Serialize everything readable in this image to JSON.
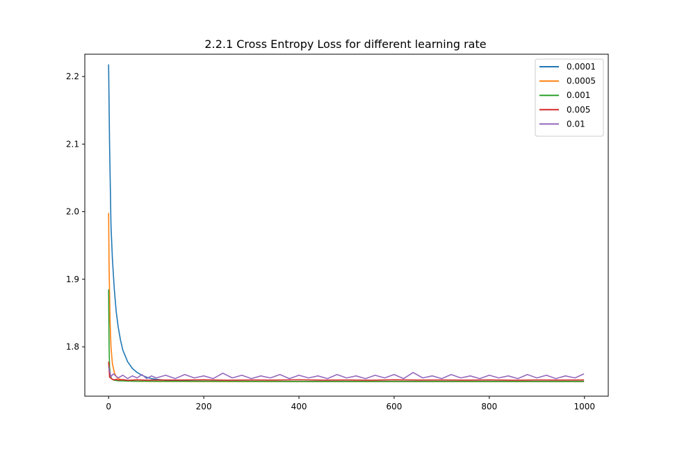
{
  "chart_data": {
    "type": "line",
    "title": "2.2.1 Cross Entropy Loss for different learning rate",
    "xlabel": "",
    "ylabel": "",
    "xlim": [
      -50,
      1050
    ],
    "ylim": [
      1.727,
      2.233
    ],
    "x_ticks": [
      0,
      200,
      400,
      600,
      800,
      1000
    ],
    "y_ticks": [
      1.8,
      1.9,
      2.0,
      2.1,
      2.2
    ],
    "x_tick_labels": [
      "0",
      "200",
      "400",
      "600",
      "800",
      "1000"
    ],
    "y_tick_labels": [
      "1.8",
      "1.9",
      "2.0",
      "2.1",
      "2.2"
    ],
    "legend_position": "top-right",
    "grid": false,
    "series": [
      {
        "name": "0.0001",
        "color": "#1f77b4",
        "x": [
          0,
          2,
          5,
          8,
          12,
          16,
          20,
          25,
          30,
          40,
          50,
          60,
          70,
          80,
          90,
          100,
          120,
          150,
          200,
          300,
          400,
          500,
          600,
          700,
          800,
          900,
          999
        ],
        "y": [
          2.218,
          2.1,
          1.98,
          1.93,
          1.885,
          1.852,
          1.83,
          1.81,
          1.795,
          1.778,
          1.768,
          1.762,
          1.758,
          1.755,
          1.753,
          1.752,
          1.7505,
          1.7495,
          1.749,
          1.7488,
          1.7487,
          1.7487,
          1.7486,
          1.7486,
          1.7486,
          1.7486,
          1.7486
        ]
      },
      {
        "name": "0.0005",
        "color": "#ff7f0e",
        "x": [
          0,
          1,
          3,
          5,
          8,
          12,
          16,
          20,
          30,
          40,
          60,
          100,
          200,
          400,
          600,
          800,
          999
        ],
        "y": [
          1.998,
          1.92,
          1.84,
          1.8,
          1.775,
          1.762,
          1.756,
          1.753,
          1.7505,
          1.7495,
          1.749,
          1.7488,
          1.7487,
          1.7487,
          1.7486,
          1.7486,
          1.7486
        ]
      },
      {
        "name": "0.001",
        "color": "#2ca02c",
        "x": [
          0,
          1,
          2,
          4,
          6,
          10,
          15,
          20,
          30,
          50,
          100,
          200,
          400,
          600,
          800,
          999
        ],
        "y": [
          1.885,
          1.8,
          1.77,
          1.757,
          1.753,
          1.751,
          1.7502,
          1.7498,
          1.7495,
          1.7492,
          1.749,
          1.749,
          1.7489,
          1.7489,
          1.7489,
          1.7489
        ]
      },
      {
        "name": "0.005",
        "color": "#d62728",
        "x": [
          0,
          2,
          4,
          8,
          12,
          16,
          20,
          30,
          40,
          60,
          80,
          100,
          150,
          200,
          250,
          300,
          350,
          400,
          450,
          500,
          550,
          600,
          650,
          700,
          750,
          800,
          850,
          900,
          950,
          999
        ],
        "y": [
          1.778,
          1.755,
          1.754,
          1.752,
          1.751,
          1.752,
          1.7508,
          1.7515,
          1.7505,
          1.7512,
          1.7506,
          1.751,
          1.7508,
          1.7512,
          1.7506,
          1.751,
          1.7508,
          1.7513,
          1.7507,
          1.751,
          1.7506,
          1.7512,
          1.7508,
          1.751,
          1.7507,
          1.7511,
          1.7506,
          1.751,
          1.7508,
          1.751
        ]
      },
      {
        "name": "0.01",
        "color": "#9467bd",
        "x": [
          0,
          5,
          10,
          20,
          30,
          40,
          50,
          60,
          70,
          80,
          90,
          100,
          120,
          140,
          160,
          180,
          200,
          220,
          240,
          260,
          280,
          300,
          320,
          340,
          360,
          380,
          400,
          420,
          440,
          460,
          480,
          500,
          520,
          540,
          560,
          580,
          600,
          620,
          640,
          660,
          680,
          700,
          720,
          740,
          760,
          780,
          800,
          820,
          840,
          860,
          880,
          900,
          920,
          940,
          960,
          980,
          999
        ],
        "y": [
          1.77,
          1.756,
          1.76,
          1.754,
          1.758,
          1.753,
          1.757,
          1.754,
          1.759,
          1.753,
          1.757,
          1.754,
          1.758,
          1.753,
          1.759,
          1.754,
          1.757,
          1.753,
          1.761,
          1.754,
          1.758,
          1.753,
          1.757,
          1.754,
          1.759,
          1.753,
          1.758,
          1.754,
          1.757,
          1.753,
          1.759,
          1.754,
          1.757,
          1.753,
          1.758,
          1.754,
          1.759,
          1.753,
          1.762,
          1.754,
          1.757,
          1.753,
          1.759,
          1.754,
          1.757,
          1.753,
          1.758,
          1.754,
          1.757,
          1.753,
          1.759,
          1.754,
          1.758,
          1.753,
          1.757,
          1.754,
          1.76
        ]
      }
    ]
  }
}
